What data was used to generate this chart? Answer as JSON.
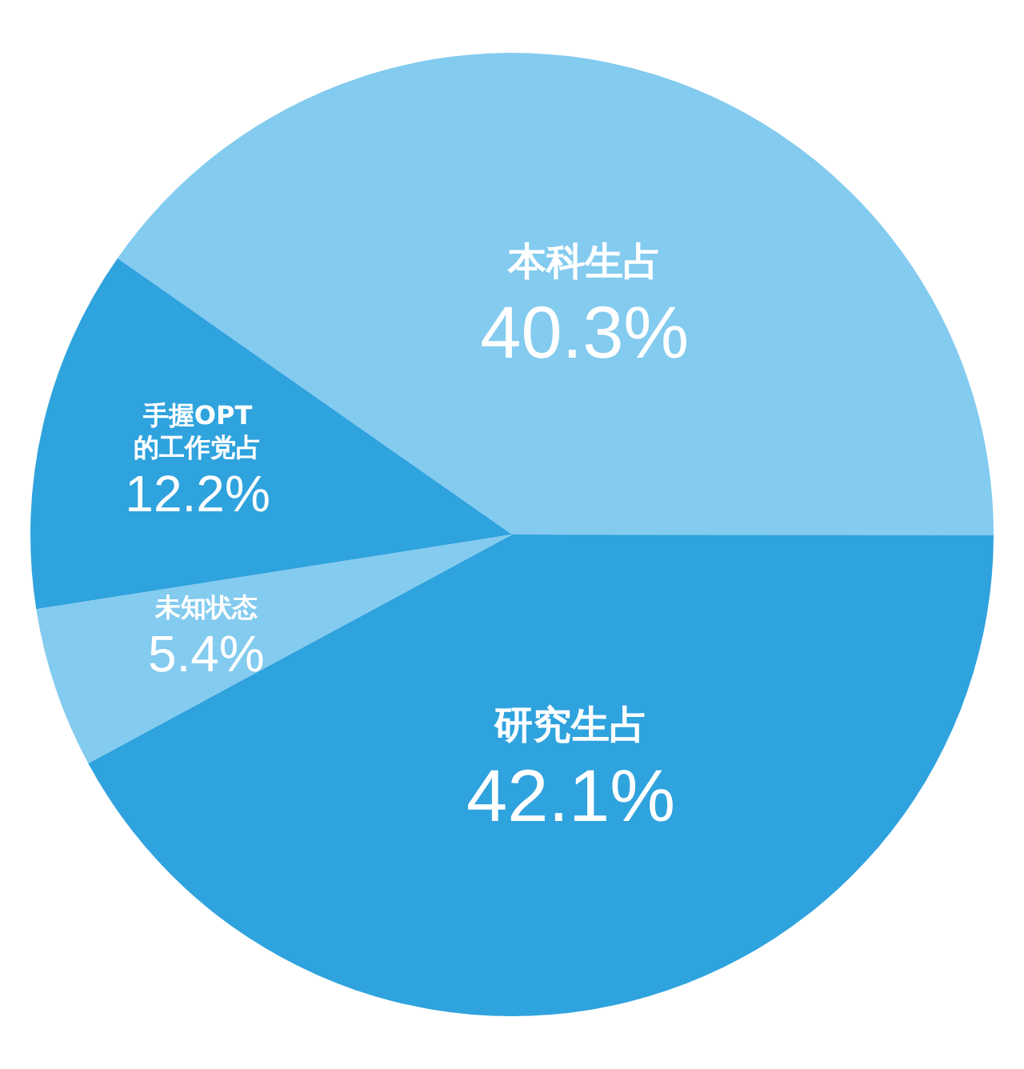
{
  "chart_data": {
    "type": "pie",
    "categories": [
      "本科生占",
      "研究生占",
      "未知状态",
      "手握OPT\n的工作党占"
    ],
    "values": [
      40.3,
      42.1,
      5.4,
      12.2
    ],
    "colors": [
      "#83cbef",
      "#2fa3de",
      "#83cbef",
      "#2fa3de"
    ],
    "value_labels": [
      "40.3%",
      "42.1%",
      "5.4%",
      "12.2%"
    ],
    "legend": false
  }
}
